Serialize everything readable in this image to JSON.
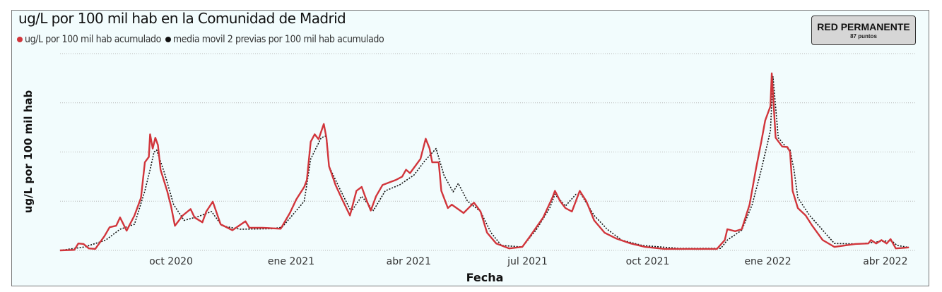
{
  "title": "ug/L por 100 mil hab en la Comunidad de Madrid",
  "badge": {
    "title": "RED PERMANENTE",
    "subtitle": "87 puntos"
  },
  "chart_data": {
    "type": "line",
    "title": "ug/L por 100 mil hab en la Comunidad de Madrid",
    "xlabel": "Fecha",
    "ylabel": "ug/L por 100 mil hab",
    "y_ticks_shown": false,
    "grid": true,
    "legend_position": "top-left",
    "ylim": [
      0,
      4
    ],
    "x_ticks": [
      {
        "date": "2020-10-01",
        "label": "oct 2020"
      },
      {
        "date": "2021-01-01",
        "label": "ene 2021"
      },
      {
        "date": "2021-04-01",
        "label": "abr 2021"
      },
      {
        "date": "2021-07-01",
        "label": "jul 2021"
      },
      {
        "date": "2021-10-01",
        "label": "oct 2021"
      },
      {
        "date": "2022-01-01",
        "label": "ene 2022"
      },
      {
        "date": "2022-04-01",
        "label": "abr 2022"
      }
    ],
    "series": [
      {
        "name": "ug/L por 100 mil hab acumulado",
        "color": "#d1353b",
        "style": "solid",
        "points": [
          [
            "2020-07-08",
            0
          ],
          [
            "2020-07-19",
            0.01
          ],
          [
            "2020-07-22",
            0.14
          ],
          [
            "2020-07-26",
            0.13
          ],
          [
            "2020-07-30",
            0.04
          ],
          [
            "2020-08-04",
            0.03
          ],
          [
            "2020-08-11",
            0.29
          ],
          [
            "2020-08-15",
            0.47
          ],
          [
            "2020-08-20",
            0.5
          ],
          [
            "2020-08-23",
            0.67
          ],
          [
            "2020-08-28",
            0.4
          ],
          [
            "2020-09-03",
            0.71
          ],
          [
            "2020-09-08",
            1.07
          ],
          [
            "2020-09-11",
            1.79
          ],
          [
            "2020-09-14",
            1.9
          ],
          [
            "2020-09-15",
            2.36
          ],
          [
            "2020-09-17",
            2.07
          ],
          [
            "2020-09-19",
            2.29
          ],
          [
            "2020-09-21",
            2.14
          ],
          [
            "2020-09-23",
            1.64
          ],
          [
            "2020-09-28",
            1.21
          ],
          [
            "2020-10-01",
            0.9
          ],
          [
            "2020-10-04",
            0.5
          ],
          [
            "2020-10-10",
            0.71
          ],
          [
            "2020-10-16",
            0.84
          ],
          [
            "2020-10-19",
            0.67
          ],
          [
            "2020-10-25",
            0.57
          ],
          [
            "2020-10-28",
            0.79
          ],
          [
            "2020-11-02",
            0.99
          ],
          [
            "2020-11-08",
            0.53
          ],
          [
            "2020-11-17",
            0.41
          ],
          [
            "2020-11-27",
            0.59
          ],
          [
            "2020-11-30",
            0.46
          ],
          [
            "2020-12-10",
            0.46
          ],
          [
            "2020-12-24",
            0.44
          ],
          [
            "2020-12-31",
            0.76
          ],
          [
            "2021-01-05",
            1.04
          ],
          [
            "2021-01-11",
            1.29
          ],
          [
            "2021-01-13",
            1.43
          ],
          [
            "2021-01-16",
            2.21
          ],
          [
            "2021-01-19",
            2.36
          ],
          [
            "2021-01-22",
            2.26
          ],
          [
            "2021-01-26",
            2.57
          ],
          [
            "2021-01-28",
            2.29
          ],
          [
            "2021-01-30",
            1.71
          ],
          [
            "2021-02-04",
            1.33
          ],
          [
            "2021-02-09",
            1.04
          ],
          [
            "2021-02-15",
            0.71
          ],
          [
            "2021-02-20",
            1.21
          ],
          [
            "2021-02-24",
            1.29
          ],
          [
            "2021-02-28",
            1.0
          ],
          [
            "2021-03-03",
            0.81
          ],
          [
            "2021-03-07",
            1.1
          ],
          [
            "2021-03-12",
            1.33
          ],
          [
            "2021-03-18",
            1.39
          ],
          [
            "2021-03-22",
            1.43
          ],
          [
            "2021-03-27",
            1.5
          ],
          [
            "2021-03-30",
            1.64
          ],
          [
            "2021-04-02",
            1.57
          ],
          [
            "2021-04-10",
            1.86
          ],
          [
            "2021-04-14",
            2.27
          ],
          [
            "2021-04-17",
            2.07
          ],
          [
            "2021-04-19",
            1.79
          ],
          [
            "2021-04-24",
            1.79
          ],
          [
            "2021-04-26",
            1.21
          ],
          [
            "2021-05-01",
            0.86
          ],
          [
            "2021-05-04",
            0.93
          ],
          [
            "2021-05-13",
            0.76
          ],
          [
            "2021-05-21",
            0.97
          ],
          [
            "2021-05-26",
            0.79
          ],
          [
            "2021-05-31",
            0.36
          ],
          [
            "2021-06-07",
            0.14
          ],
          [
            "2021-06-17",
            0.04
          ],
          [
            "2021-06-27",
            0.07
          ],
          [
            "2021-07-03",
            0.29
          ],
          [
            "2021-07-13",
            0.67
          ],
          [
            "2021-07-20",
            1.07
          ],
          [
            "2021-07-22",
            1.21
          ],
          [
            "2021-07-26",
            1.0
          ],
          [
            "2021-07-30",
            0.86
          ],
          [
            "2021-08-04",
            0.79
          ],
          [
            "2021-08-10",
            1.21
          ],
          [
            "2021-08-15",
            1.0
          ],
          [
            "2021-08-21",
            0.61
          ],
          [
            "2021-08-29",
            0.36
          ],
          [
            "2021-09-07",
            0.24
          ],
          [
            "2021-09-18",
            0.14
          ],
          [
            "2021-09-29",
            0.07
          ],
          [
            "2021-10-14",
            0.03
          ],
          [
            "2021-11-04",
            0.03
          ],
          [
            "2021-11-23",
            0.03
          ],
          [
            "2021-11-29",
            0.21
          ],
          [
            "2021-12-01",
            0.43
          ],
          [
            "2021-12-07",
            0.39
          ],
          [
            "2021-12-12",
            0.43
          ],
          [
            "2021-12-18",
            0.93
          ],
          [
            "2021-12-23",
            1.67
          ],
          [
            "2021-12-27",
            2.21
          ],
          [
            "2021-12-30",
            2.64
          ],
          [
            "2022-01-03",
            2.93
          ],
          [
            "2022-01-04",
            3.6
          ],
          [
            "2022-01-07",
            2.29
          ],
          [
            "2022-01-12",
            2.11
          ],
          [
            "2022-01-16",
            2.1
          ],
          [
            "2022-01-18",
            2.0
          ],
          [
            "2022-01-20",
            1.21
          ],
          [
            "2022-01-24",
            0.86
          ],
          [
            "2022-01-30",
            0.71
          ],
          [
            "2022-02-04",
            0.5
          ],
          [
            "2022-02-12",
            0.21
          ],
          [
            "2022-02-21",
            0.07
          ],
          [
            "2022-03-09",
            0.13
          ],
          [
            "2022-03-19",
            0.14
          ],
          [
            "2022-03-21",
            0.21
          ],
          [
            "2022-03-25",
            0.14
          ],
          [
            "2022-03-29",
            0.21
          ],
          [
            "2022-04-02",
            0.14
          ],
          [
            "2022-04-05",
            0.23
          ],
          [
            "2022-04-09",
            0.04
          ],
          [
            "2022-04-19",
            0.06
          ]
        ]
      },
      {
        "name": "media movil 2 previas por 100 mil hab acumulado",
        "color": "#111111",
        "style": "dotted",
        "points": [
          [
            "2020-07-08",
            0
          ],
          [
            "2020-07-27",
            0.07
          ],
          [
            "2020-08-12",
            0.21
          ],
          [
            "2020-08-23",
            0.43
          ],
          [
            "2020-09-03",
            0.53
          ],
          [
            "2020-09-11",
            1.21
          ],
          [
            "2020-09-15",
            1.64
          ],
          [
            "2020-09-18",
            2.0
          ],
          [
            "2020-09-20",
            2.04
          ],
          [
            "2020-09-26",
            1.57
          ],
          [
            "2020-10-03",
            0.93
          ],
          [
            "2020-10-11",
            0.61
          ],
          [
            "2020-10-22",
            0.69
          ],
          [
            "2020-11-01",
            0.79
          ],
          [
            "2020-11-09",
            0.5
          ],
          [
            "2020-11-23",
            0.43
          ],
          [
            "2020-12-17",
            0.44
          ],
          [
            "2020-12-25",
            0.47
          ],
          [
            "2021-01-05",
            0.81
          ],
          [
            "2021-01-11",
            1.0
          ],
          [
            "2021-01-16",
            1.86
          ],
          [
            "2021-01-24",
            2.29
          ],
          [
            "2021-01-28",
            2.33
          ],
          [
            "2021-01-30",
            1.71
          ],
          [
            "2021-02-08",
            1.21
          ],
          [
            "2021-02-16",
            0.79
          ],
          [
            "2021-02-24",
            1.1
          ],
          [
            "2021-03-05",
            0.81
          ],
          [
            "2021-03-14",
            1.21
          ],
          [
            "2021-03-25",
            1.33
          ],
          [
            "2021-04-05",
            1.53
          ],
          [
            "2021-04-13",
            1.81
          ],
          [
            "2021-04-22",
            2.07
          ],
          [
            "2021-04-28",
            1.53
          ],
          [
            "2021-05-05",
            1.19
          ],
          [
            "2021-05-09",
            1.36
          ],
          [
            "2021-05-16",
            1.0
          ],
          [
            "2021-05-26",
            0.79
          ],
          [
            "2021-06-03",
            0.36
          ],
          [
            "2021-06-11",
            0.1
          ],
          [
            "2021-06-27",
            0.07
          ],
          [
            "2021-07-08",
            0.43
          ],
          [
            "2021-07-18",
            0.86
          ],
          [
            "2021-07-22",
            1.14
          ],
          [
            "2021-07-30",
            0.9
          ],
          [
            "2021-08-07",
            1.14
          ],
          [
            "2021-08-11",
            1.14
          ],
          [
            "2021-08-21",
            0.71
          ],
          [
            "2021-08-31",
            0.43
          ],
          [
            "2021-09-11",
            0.21
          ],
          [
            "2021-09-27",
            0.1
          ],
          [
            "2021-10-25",
            0.04
          ],
          [
            "2021-11-26",
            0.04
          ],
          [
            "2021-12-01",
            0.21
          ],
          [
            "2021-12-12",
            0.41
          ],
          [
            "2021-12-20",
            0.93
          ],
          [
            "2021-12-27",
            1.64
          ],
          [
            "2022-01-03",
            2.43
          ],
          [
            "2022-01-05",
            3.53
          ],
          [
            "2022-01-09",
            2.29
          ],
          [
            "2022-01-16",
            2.07
          ],
          [
            "2022-01-18",
            2.04
          ],
          [
            "2022-01-21",
            1.64
          ],
          [
            "2022-01-24",
            1.07
          ],
          [
            "2022-02-02",
            0.71
          ],
          [
            "2022-02-10",
            0.47
          ],
          [
            "2022-02-21",
            0.14
          ],
          [
            "2022-03-12",
            0.13
          ],
          [
            "2022-03-31",
            0.19
          ],
          [
            "2022-04-06",
            0.19
          ],
          [
            "2022-04-10",
            0.1
          ],
          [
            "2022-04-19",
            0.06
          ]
        ]
      }
    ]
  }
}
